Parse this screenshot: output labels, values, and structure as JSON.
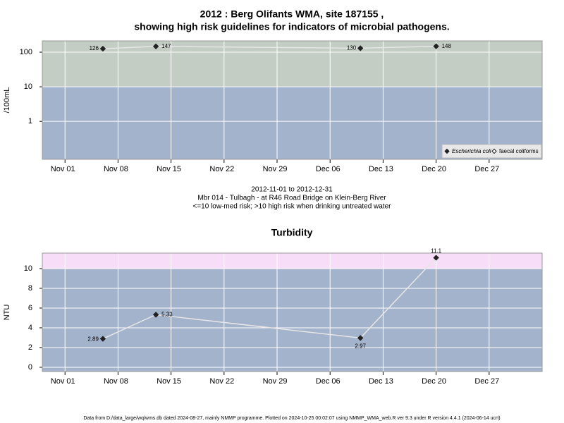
{
  "chart_data": [
    {
      "type": "line",
      "title": [
        "2012 : Berg Olifants WMA, site 187155 ,",
        "showing high risk guidelines for indicators of microbial pathogens."
      ],
      "y_label": "/100mL",
      "x": [
        "2012-11-06",
        "2012-11-13",
        "2012-12-10",
        "2012-12-20"
      ],
      "series": [
        {
          "name": "Escherichia coli",
          "color": "#222222",
          "marker": "filled",
          "values": [
            126,
            147,
            130,
            148
          ]
        },
        {
          "name": "faecal coliforms",
          "color": "#222222",
          "marker": "open",
          "values": [
            null,
            null,
            null,
            null
          ]
        }
      ],
      "line_color": "#e6e6e6",
      "log_y": true,
      "ylim": [
        0.08,
        212
      ],
      "yticks": [
        1,
        10,
        100
      ],
      "xlim": [
        "2012-10-29",
        "2013-01-03"
      ],
      "xticks": [
        {
          "value": "2012-11-01",
          "label": "Nov 01"
        },
        {
          "value": "2012-11-08",
          "label": "Nov 08"
        },
        {
          "value": "2012-11-15",
          "label": "Nov 15"
        },
        {
          "value": "2012-11-22",
          "label": "Nov 22"
        },
        {
          "value": "2012-11-29",
          "label": "Nov 29"
        },
        {
          "value": "2012-12-06",
          "label": "Dec 06"
        },
        {
          "value": "2012-12-13",
          "label": "Dec 13"
        },
        {
          "value": "2012-12-20",
          "label": "Dec 20"
        },
        {
          "value": "2012-12-27",
          "label": "Dec 27"
        }
      ],
      "grid": true,
      "threshold": 10,
      "band_colors": {
        "above": "#c3cdc3",
        "below": "#a3b3cc"
      },
      "legend": "bottom-right",
      "notes": [
        "2012-11-01 to 2012-12-31",
        "Mbr 014 - Tulbagh - at R46 Road Bridge on Klein-Berg River",
        "<=10 low-med risk; >10 high risk when drinking untreated water"
      ]
    },
    {
      "type": "line",
      "title": [
        "Turbidity"
      ],
      "y_label": "NTU",
      "x": [
        "2012-11-06",
        "2012-11-13",
        "2012-12-10",
        "2012-12-20"
      ],
      "series": [
        {
          "name": "Turbidity",
          "color": "#222222",
          "marker": "filled",
          "values": [
            2.89,
            5.33,
            2.97,
            11.1
          ]
        }
      ],
      "line_color": "#e6e6e6",
      "log_y": false,
      "ylim": [
        -0.43,
        11.57
      ],
      "yticks": [
        0,
        2,
        4,
        6,
        8,
        10
      ],
      "xlim": [
        "2012-10-29",
        "2013-01-03"
      ],
      "xticks": [
        {
          "value": "2012-11-01",
          "label": "Nov 01"
        },
        {
          "value": "2012-11-08",
          "label": "Nov 08"
        },
        {
          "value": "2012-11-15",
          "label": "Nov 15"
        },
        {
          "value": "2012-11-22",
          "label": "Nov 22"
        },
        {
          "value": "2012-11-29",
          "label": "Nov 29"
        },
        {
          "value": "2012-12-06",
          "label": "Dec 06"
        },
        {
          "value": "2012-12-13",
          "label": "Dec 13"
        },
        {
          "value": "2012-12-20",
          "label": "Dec 20"
        },
        {
          "value": "2012-12-27",
          "label": "Dec 27"
        }
      ],
      "grid": true,
      "threshold": 10,
      "band_colors": {
        "above": "#f8ddf8",
        "below": "#a3b3cc"
      }
    }
  ],
  "footer": "Data from D:/data_large/wq/wms.db dated 2024-08-27, mainly NMMP programme. Plotted on 2024-10-25 00:02:07 using NMMP_WMA_web.R ver 9.3 under R version 4.4.1 (2024-06-14 ucrt)"
}
